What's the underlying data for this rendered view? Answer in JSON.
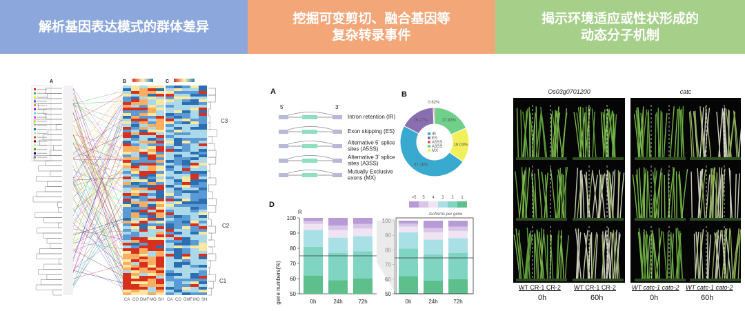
{
  "banners": [
    {
      "lines": [
        "解析基因表达模式的群体差异"
      ]
    },
    {
      "lines": [
        "挖掘可变剪切、融合基因等",
        "复杂转录事件"
      ]
    },
    {
      "lines": [
        "揭示环境适应或性状形成的",
        "动态分子机制"
      ]
    }
  ],
  "heatmap_panel": {
    "panel_labels": [
      "A",
      "B",
      "C"
    ],
    "cluster_labels": [
      "C3",
      "C2",
      "C1"
    ],
    "x_labels_b": [
      "CA",
      "CO",
      "DMF",
      "MO",
      "SH"
    ],
    "x_labels_c": [
      "CA",
      "CO",
      "DMF",
      "MO",
      "SH"
    ]
  },
  "splicing_panel": {
    "label_a": "A",
    "label_b": "B",
    "label_d": "D",
    "strand_start": "5'",
    "strand_end": "3'",
    "events": [
      {
        "lines": [
          "Intron retention (IR)"
        ]
      },
      {
        "lines": [
          "Exon skipping (ES)"
        ]
      },
      {
        "lines": [
          "Alternative 5' splice",
          "sites (A5SS)"
        ]
      },
      {
        "lines": [
          "Alternative 3' splice",
          "sites (A3SS)"
        ]
      },
      {
        "lines": [
          "Mutually Exclusive",
          "exons (MX)"
        ]
      }
    ],
    "donut": {
      "legend": [
        "IR",
        "ES",
        "A5SS",
        "A3SS",
        "MX"
      ],
      "slices": [
        {
          "label": "47.16%",
          "value": 47.16,
          "color": "#3aa9cf"
        },
        {
          "label": "16.27%",
          "value": 16.27,
          "color": "#8a6fb0"
        },
        {
          "label": "0.62%",
          "value": 0.62,
          "color": "#e06060"
        },
        {
          "label": "17.92%",
          "value": 17.92,
          "color": "#6fd08a"
        },
        {
          "label": "16.03%",
          "value": 16.03,
          "color": "#f2f05a"
        }
      ]
    },
    "isoform_legend": {
      "keys": [
        ">5",
        "5",
        "4",
        "3",
        "2",
        "1"
      ],
      "colors": [
        "#b79ad6",
        "#d8c6e8",
        "#f0e4f2",
        "#a9e0e6",
        "#7fd5c2",
        "#5cbf8c"
      ],
      "caption": "Isoforms per gene"
    },
    "bar_title": "R",
    "ylabel": "gene numbers(%)",
    "yticks_left": [
      "100",
      "90",
      "80",
      "70",
      "60",
      "50"
    ],
    "yticks_right": [
      "100",
      "90",
      "80",
      "70",
      "60",
      "50"
    ],
    "xcategories": [
      "0h",
      "24h",
      "72h"
    ]
  },
  "chart_data": {
    "type": "bar",
    "title": "R",
    "ylabel": "gene numbers(%)",
    "ylim": [
      50,
      100
    ],
    "categories": [
      "0h",
      "24h",
      "72h"
    ],
    "series": [
      {
        "name": "1",
        "values": [
          62,
          59,
          60
        ]
      },
      {
        "name": "2",
        "values": [
          19,
          18,
          18
        ]
      },
      {
        "name": "3",
        "values": [
          11,
          10,
          10
        ]
      },
      {
        "name": "4",
        "values": [
          4,
          5,
          5
        ]
      },
      {
        "name": "5",
        "values": [
          2,
          3,
          3
        ]
      },
      {
        "name": ">5",
        "values": [
          2,
          5,
          4
        ]
      }
    ]
  },
  "plant_panel": {
    "group1_title": "Os03g0701200",
    "group2_title": "catc",
    "group1_labels": [
      "WT",
      "CR-1",
      "CR-2"
    ],
    "group2_labels": [
      "WT",
      "catc-1",
      "cato-2"
    ],
    "timepoints": [
      "0h",
      "60h",
      "0h",
      "60h"
    ]
  }
}
